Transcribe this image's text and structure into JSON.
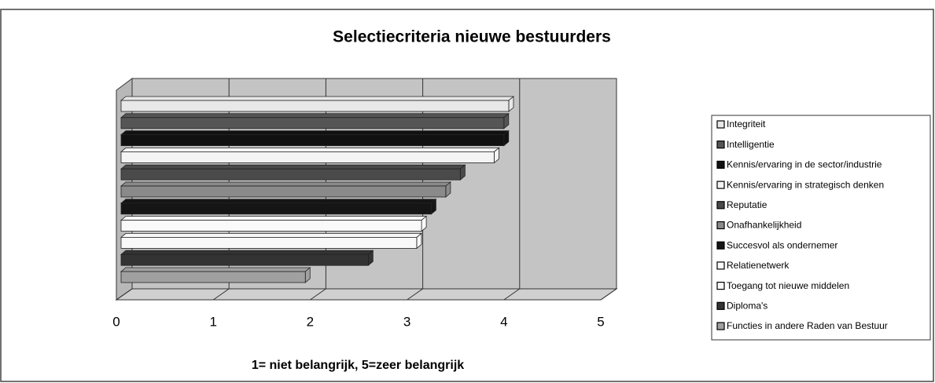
{
  "chart_data": {
    "type": "bar",
    "orientation": "horizontal",
    "title": "Selectiecriteria nieuwe bestuurders",
    "xlabel": "1= niet belangrijk, 5=zeer belangrijk",
    "xlim": [
      0,
      5
    ],
    "xticks": [
      0,
      1,
      2,
      3,
      4,
      5
    ],
    "grid": true,
    "legend": "right",
    "series": [
      {
        "name": "Integriteit",
        "color": "#e8e8e8",
        "values": [
          4.05
        ]
      },
      {
        "name": "Intelligentie",
        "color": "#555555",
        "values": [
          4.0
        ]
      },
      {
        "name": "Kennis/ervaring in de sector/industrie",
        "color": "#111111",
        "values": [
          4.0
        ]
      },
      {
        "name": "Kennis/ervaring in strategisch denken",
        "color": "#f4f4f4",
        "values": [
          3.9
        ]
      },
      {
        "name": "Reputatie",
        "color": "#4a4a4a",
        "values": [
          3.55
        ]
      },
      {
        "name": "Onafhankelijkheid",
        "color": "#8a8a8a",
        "values": [
          3.4
        ]
      },
      {
        "name": "Succesvol als ondernemer",
        "color": "#151515",
        "values": [
          3.25
        ]
      },
      {
        "name": "Relatienetwerk",
        "color": "#fafafa",
        "values": [
          3.15
        ]
      },
      {
        "name": "Toegang tot nieuwe middelen",
        "color": "#f8f8f8",
        "values": [
          3.1
        ]
      },
      {
        "name": "Diploma's",
        "color": "#333333",
        "values": [
          2.6
        ]
      },
      {
        "name": "Functies in andere Raden van Bestuur",
        "color": "#a0a0a0",
        "values": [
          1.95
        ]
      }
    ]
  }
}
